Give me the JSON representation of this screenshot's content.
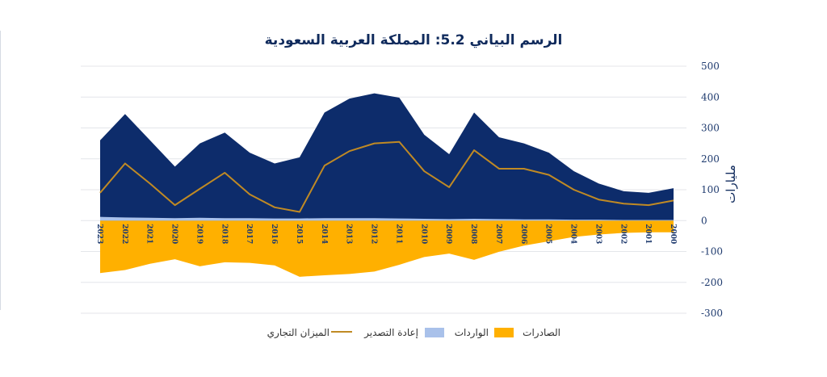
{
  "chart_data": {
    "type": "area",
    "title": "الرسم البياني 5.2: المملكة العربية السعودية",
    "ylabel": "مليارات",
    "xlabel": "",
    "ylim": [
      -300,
      500
    ],
    "yticks": [
      -300,
      -200,
      -100,
      0,
      100,
      200,
      300,
      400,
      500
    ],
    "ytick_labels": [
      "-300",
      "-200",
      "-100",
      "0",
      "100",
      "200",
      "300",
      "400",
      "500"
    ],
    "grid": true,
    "legend_position": "bottom",
    "categories": [
      "2023",
      "2022",
      "2021",
      "2020",
      "2019",
      "2018",
      "2017",
      "2016",
      "2015",
      "2014",
      "2013",
      "2012",
      "2011",
      "2010",
      "2009",
      "2008",
      "2007",
      "2006",
      "2005",
      "2004",
      "2003",
      "2002",
      "2001",
      "2000"
    ],
    "series": [
      {
        "name": "الصادرات",
        "kind": "area",
        "color": "#0d2c6b",
        "values": [
          260,
          345,
          260,
          175,
          250,
          285,
          220,
          185,
          205,
          350,
          395,
          412,
          398,
          278,
          215,
          350,
          270,
          250,
          220,
          160,
          120,
          95,
          90,
          105
        ]
      },
      {
        "name": "الواردات",
        "kind": "area",
        "color": "#ffb000",
        "values": [
          -170,
          -160,
          -140,
          -125,
          -148,
          -135,
          -137,
          -145,
          -182,
          -177,
          -173,
          -165,
          -143,
          -118,
          -107,
          -127,
          -101,
          -81,
          -67,
          -53,
          -45,
          -40,
          -38,
          -38
        ]
      },
      {
        "name": "إعادة التصدير",
        "kind": "area",
        "color": "#a9c1ea",
        "values": [
          12,
          10,
          9,
          8,
          9,
          8,
          8,
          7,
          7,
          8,
          8,
          8,
          7,
          6,
          5,
          6,
          5,
          4,
          4,
          3,
          3,
          2,
          2,
          2
        ]
      },
      {
        "name": "الميزان التجاري",
        "kind": "line",
        "color": "#c08a24",
        "values": [
          90,
          185,
          120,
          50,
          103,
          155,
          85,
          43,
          28,
          178,
          225,
          250,
          255,
          160,
          108,
          228,
          168,
          168,
          148,
          100,
          68,
          55,
          50,
          65
        ]
      }
    ],
    "legend": [
      {
        "label": "الصادرات",
        "color": "#ffb000",
        "kind": "swatch"
      },
      {
        "label": "الواردات",
        "color": "#a9c1ea",
        "kind": "swatch"
      },
      {
        "label": "إعادة التصدير",
        "color": "#c08a24",
        "kind": "line"
      },
      {
        "label": "الميزان التجاري",
        "color": "",
        "kind": "text"
      }
    ]
  }
}
